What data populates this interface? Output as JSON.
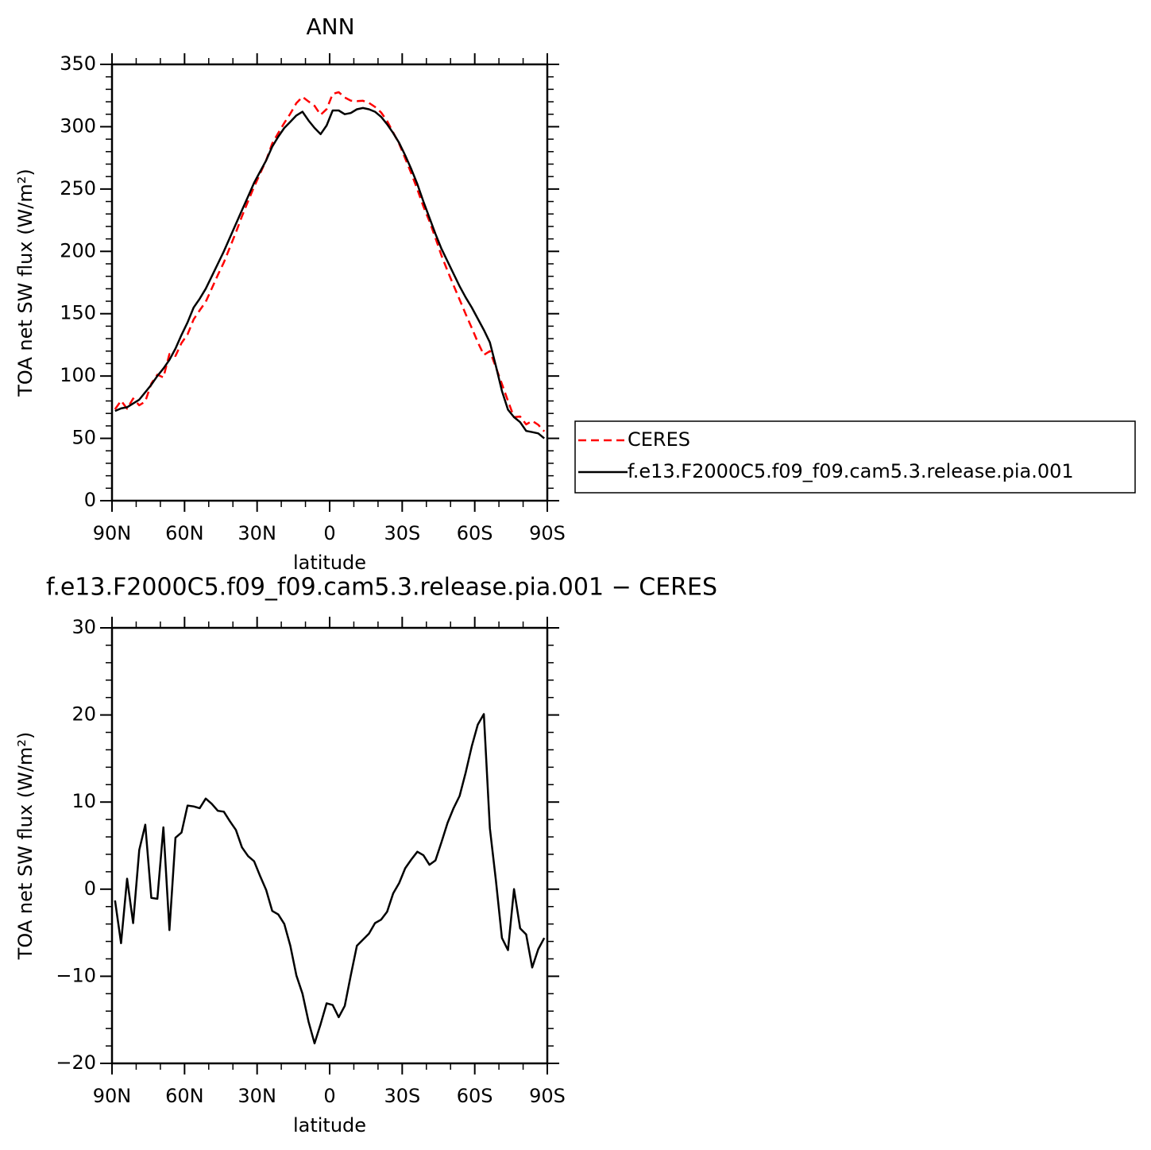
{
  "chart_data": [
    {
      "type": "line",
      "title": "ANN",
      "xlabel": "latitude",
      "ylabel": "TOA net SW flux (W/m²)",
      "x": [
        88.75,
        86.25,
        83.75,
        81.25,
        78.75,
        76.25,
        73.75,
        71.25,
        68.75,
        66.25,
        63.75,
        61.25,
        58.75,
        56.25,
        53.75,
        51.25,
        48.75,
        46.25,
        43.75,
        41.25,
        38.75,
        36.25,
        33.75,
        31.25,
        28.75,
        26.25,
        23.75,
        21.25,
        18.75,
        16.25,
        13.75,
        11.25,
        8.75,
        6.25,
        3.75,
        1.25,
        -1.25,
        -3.75,
        -6.25,
        -8.75,
        -11.25,
        -13.75,
        -16.25,
        -18.75,
        -21.25,
        -23.75,
        -26.25,
        -28.75,
        -31.25,
        -33.75,
        -36.25,
        -38.75,
        -41.25,
        -43.75,
        -46.25,
        -48.75,
        -51.25,
        -53.75,
        -56.25,
        -58.75,
        -61.25,
        -63.75,
        -66.25,
        -68.75,
        -71.25,
        -73.75,
        -76.25,
        -78.75,
        -81.25,
        -83.75,
        -86.25,
        -88.75
      ],
      "xlim": [
        90,
        -90
      ],
      "xticks": [
        {
          "value": 90,
          "label": "90N"
        },
        {
          "value": 60,
          "label": "60N"
        },
        {
          "value": 30,
          "label": "30N"
        },
        0,
        {
          "value": -30,
          "label": "30S"
        },
        {
          "value": -60,
          "label": "60S"
        },
        {
          "value": -90,
          "label": "90S"
        }
      ],
      "ylim": [
        0,
        350
      ],
      "yticks": [
        0,
        50,
        100,
        150,
        200,
        250,
        300,
        350
      ],
      "legend": "right",
      "series": [
        {
          "name": "CERES",
          "color": "#ff0000",
          "linestyle": "dashed",
          "values": [
            73.3,
            80.2,
            73.8,
            81.9,
            76.5,
            79.6,
            94,
            101.1,
            98.9,
            117.7,
            116.1,
            126.5,
            133.4,
            145.5,
            152.7,
            159.6,
            170.2,
            181,
            191.1,
            203.2,
            215.2,
            228.2,
            240.2,
            251.8,
            262.5,
            273.1,
            286.5,
            294.9,
            303,
            310.5,
            318.9,
            324,
            320.2,
            316.7,
            309.5,
            314.1,
            326.3,
            327.7,
            323.4,
            320.9,
            320.5,
            320.8,
            319.1,
            315.9,
            311.5,
            304.6,
            295.5,
            286.3,
            274.6,
            262.6,
            249.7,
            236.1,
            224.2,
            210.7,
            196.6,
            184.4,
            172.7,
            161.3,
            149.6,
            138.6,
            127.1,
            116.9,
            120,
            107,
            93.6,
            80,
            67,
            67.5,
            61.2,
            64,
            60.9,
            55.6
          ]
        },
        {
          "name": "f.e13.F2000C5.f09_f09.cam5.3.release.pia.001",
          "color": "#000000",
          "linestyle": "solid",
          "values": [
            72,
            74,
            75,
            78,
            81,
            87,
            93,
            100,
            106,
            113,
            122,
            133,
            143,
            155,
            162,
            170,
            180,
            190,
            200,
            211,
            222,
            233,
            244,
            255,
            264,
            273,
            284,
            292,
            299,
            304,
            309,
            312,
            305,
            299,
            294,
            301,
            313,
            313,
            310,
            311,
            314,
            315,
            314,
            312,
            308,
            302,
            295,
            287,
            277,
            266,
            254,
            240,
            227,
            214,
            202,
            192,
            182,
            172,
            163,
            155,
            146,
            137,
            127,
            108,
            88,
            73,
            67,
            63,
            56,
            55,
            54,
            50
          ]
        }
      ]
    },
    {
      "type": "line",
      "title": "f.e13.F2000C5.f09_f09.cam5.3.release.pia.001 − CERES",
      "xlabel": "latitude",
      "ylabel": "TOA net SW flux (W/m²)",
      "x": [
        88.75,
        86.25,
        83.75,
        81.25,
        78.75,
        76.25,
        73.75,
        71.25,
        68.75,
        66.25,
        63.75,
        61.25,
        58.75,
        56.25,
        53.75,
        51.25,
        48.75,
        46.25,
        43.75,
        41.25,
        38.75,
        36.25,
        33.75,
        31.25,
        28.75,
        26.25,
        23.75,
        21.25,
        18.75,
        16.25,
        13.75,
        11.25,
        8.75,
        6.25,
        3.75,
        1.25,
        -1.25,
        -3.75,
        -6.25,
        -8.75,
        -11.25,
        -13.75,
        -16.25,
        -18.75,
        -21.25,
        -23.75,
        -26.25,
        -28.75,
        -31.25,
        -33.75,
        -36.25,
        -38.75,
        -41.25,
        -43.75,
        -46.25,
        -48.75,
        -51.25,
        -53.75,
        -56.25,
        -58.75,
        -61.25,
        -63.75,
        -66.25,
        -68.75,
        -71.25,
        -73.75,
        -76.25,
        -78.75,
        -81.25,
        -83.75,
        -86.25,
        -88.75
      ],
      "xlim": [
        90,
        -90
      ],
      "xticks": [
        {
          "value": 90,
          "label": "90N"
        },
        {
          "value": 60,
          "label": "60N"
        },
        {
          "value": 30,
          "label": "30N"
        },
        0,
        {
          "value": -30,
          "label": "30S"
        },
        {
          "value": -60,
          "label": "60S"
        },
        {
          "value": -90,
          "label": "90S"
        }
      ],
      "ylim": [
        -20,
        30
      ],
      "yticks": [
        {
          "value": -20,
          "label": "−20"
        },
        {
          "value": -10,
          "label": "−10"
        },
        0,
        10,
        20,
        30
      ],
      "series": [
        {
          "color": "#000000",
          "linestyle": "solid",
          "values": [
            -1.3,
            -6.2,
            1.2,
            -3.9,
            4.5,
            7.4,
            -1.0,
            -1.1,
            7.1,
            -4.7,
            5.9,
            6.5,
            9.6,
            9.5,
            9.3,
            10.4,
            9.8,
            9.0,
            8.9,
            7.8,
            6.8,
            4.8,
            3.8,
            3.2,
            1.5,
            -0.1,
            -2.5,
            -2.9,
            -4.0,
            -6.5,
            -9.9,
            -12.0,
            -15.2,
            -17.7,
            -15.5,
            -13.1,
            -13.3,
            -14.7,
            -13.4,
            -9.9,
            -6.5,
            -5.8,
            -5.1,
            -3.9,
            -3.5,
            -2.6,
            -0.5,
            0.7,
            2.4,
            3.4,
            4.3,
            3.9,
            2.8,
            3.3,
            5.4,
            7.6,
            9.3,
            10.7,
            13.4,
            16.4,
            18.9,
            20.1,
            7.0,
            1.0,
            -5.6,
            -7.0,
            0.0,
            -4.5,
            -5.2,
            -9.0,
            -6.9,
            -5.6
          ]
        }
      ]
    }
  ]
}
